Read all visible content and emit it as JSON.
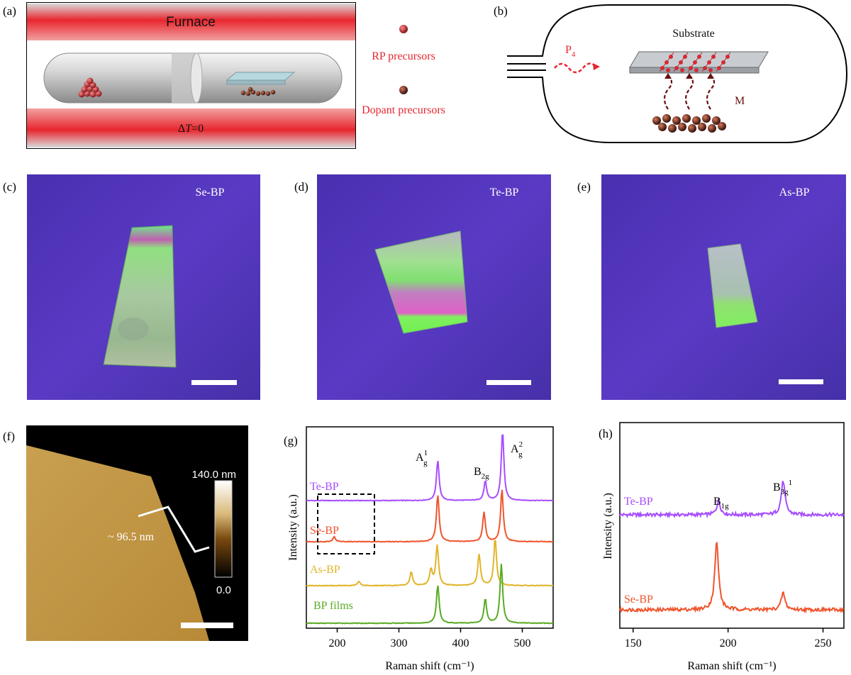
{
  "panels": {
    "a": {
      "label": "(a)",
      "furnace_label": "Furnace",
      "delta_t_prefix": "Δ",
      "delta_t_var": "T",
      "delta_t_suffix": "=0",
      "legend_rp": "RP precursors",
      "legend_dopant": "Dopant precursors",
      "colors": {
        "furnace": "#e8262e",
        "precursor": "#c0222a",
        "text_red": "#e8262e"
      }
    },
    "b": {
      "label": "(b)",
      "substrate_label": "Substrate",
      "p4_main": "P",
      "p4_sub": "4",
      "m_label": "M"
    },
    "c": {
      "label": "(c)",
      "sample": "Se-BP"
    },
    "d": {
      "label": "(d)",
      "sample": "Te-BP"
    },
    "e": {
      "label": "(e)",
      "sample": "As-BP"
    },
    "f": {
      "label": "(f)",
      "thickness_label": "~ 96.5 nm",
      "colorbar_top": "140.0 nm",
      "colorbar_bottom": "0.0"
    },
    "g": {
      "label": "(g)",
      "peak_ag1_main": "A",
      "peak_ag1_sup": "1",
      "peak_ag1_sub": "g",
      "peak_b2g_main": "B",
      "peak_b2g_sub": "2g",
      "peak_ag2_main": "A",
      "peak_ag2_sup": "2",
      "peak_ag2_sub": "g"
    },
    "h": {
      "label": "(h)",
      "peak_b1g_main": "B",
      "peak_b1g_sub": "1g",
      "peak_b3g_main": "B",
      "peak_b3g_sub": "3g",
      "peak_b3g_sup": "1"
    }
  },
  "chart_data": [
    {
      "type": "line",
      "panel": "g",
      "xlabel": "Raman shift (cm⁻¹)",
      "ylabel": "Intensity (a.u.)",
      "xlim": [
        150,
        550
      ],
      "xticks": [
        200,
        300,
        400,
        500
      ],
      "yticks_shown": false,
      "series": [
        {
          "name": "Te-BP",
          "color": "#a64dff",
          "offset": 3,
          "peaks": [
            {
              "x": 363,
              "h": 0.58
            },
            {
              "x": 440,
              "h": 0.28
            },
            {
              "x": 468,
              "h": 1.0
            }
          ]
        },
        {
          "name": "Se-BP",
          "color": "#f0542d",
          "offset": 2,
          "peaks": [
            {
              "x": 195,
              "h": 0.07
            },
            {
              "x": 363,
              "h": 0.68
            },
            {
              "x": 438,
              "h": 0.42
            },
            {
              "x": 467,
              "h": 0.75
            }
          ]
        },
        {
          "name": "As-BP",
          "color": "#e0b52a",
          "offset": 1,
          "peaks": [
            {
              "x": 235,
              "h": 0.06
            },
            {
              "x": 320,
              "h": 0.2
            },
            {
              "x": 352,
              "h": 0.22
            },
            {
              "x": 362,
              "h": 0.58
            },
            {
              "x": 430,
              "h": 0.45
            },
            {
              "x": 456,
              "h": 0.68
            }
          ]
        },
        {
          "name": "BP films",
          "color": "#5aab24",
          "offset": 0,
          "peaks": [
            {
              "x": 363,
              "h": 0.55
            },
            {
              "x": 440,
              "h": 0.35
            },
            {
              "x": 466,
              "h": 0.85
            }
          ]
        }
      ]
    },
    {
      "type": "line",
      "panel": "h",
      "xlabel": "Raman shift (cm⁻¹)",
      "ylabel": "Intensity (a.u.)",
      "xlim": [
        143,
        261
      ],
      "xticks": [
        150,
        200,
        250
      ],
      "yticks_shown": false,
      "series": [
        {
          "name": "Te-BP",
          "color": "#a64dff",
          "offset": 1,
          "peaks": [
            {
              "x": 195,
              "h": 0.2
            },
            {
              "x": 229,
              "h": 0.5
            }
          ]
        },
        {
          "name": "Se-BP",
          "color": "#f0542d",
          "offset": 0,
          "peaks": [
            {
              "x": 194,
              "h": 1.0
            },
            {
              "x": 229,
              "h": 0.25
            }
          ]
        }
      ]
    }
  ]
}
